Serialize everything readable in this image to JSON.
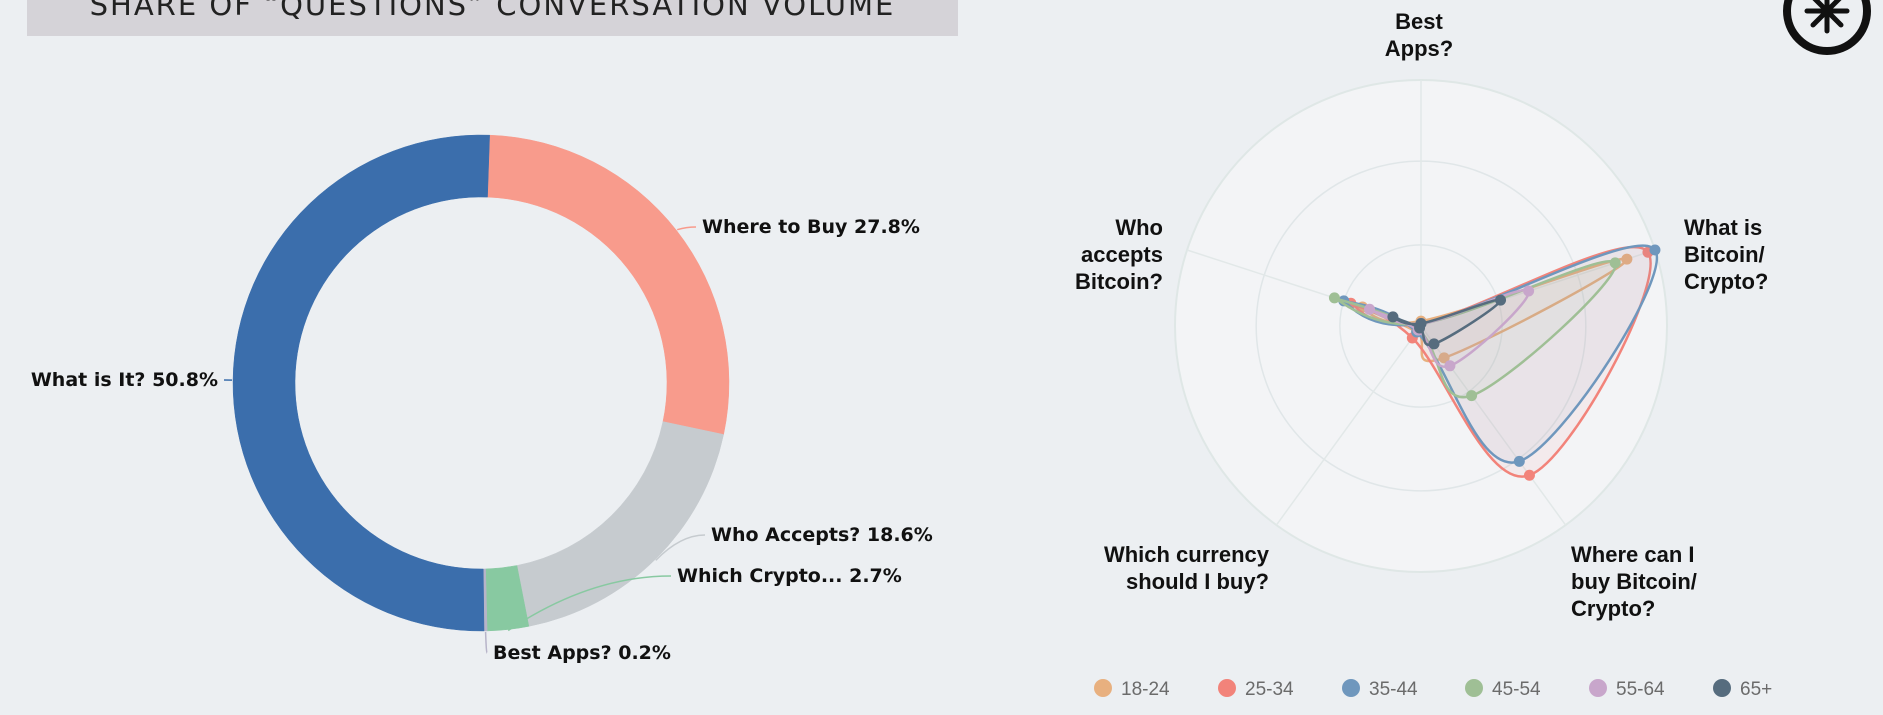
{
  "header": {
    "title": "SHARE OF “QUESTIONS” CONVERSATION VOLUME"
  },
  "logo": {
    "icon": "asterisk-circle-logo",
    "color": "#111111"
  },
  "chart_data": [
    {
      "type": "pie",
      "subtype": "donut",
      "slices": [
        {
          "label": "Where to Buy 27.8%",
          "name": "Where to Buy",
          "value": 27.8,
          "color": "#f89b8c"
        },
        {
          "label": "Who Accepts? 18.6%",
          "name": "Who Accepts?",
          "value": 18.6,
          "color": "#c6cbcf"
        },
        {
          "label": "Which Crypto... 2.7%",
          "name": "Which Crypto...",
          "value": 2.7,
          "color": "#88c9a1"
        },
        {
          "label": "Best Apps? 0.2%",
          "name": "Best Apps?",
          "value": 0.2,
          "color": "#b7b4c9"
        },
        {
          "label": "What is It? 50.8%",
          "name": "What is It?",
          "value": 50.8,
          "color": "#3b6eac"
        }
      ]
    },
    {
      "type": "radar",
      "axes": [
        "Best Apps?",
        "What is Bitcoin/ Crypto?",
        "Where can I buy Bitcoin/ Crypto?",
        "Which currency should I buy?",
        "Who accepts Bitcoin?"
      ],
      "axis_label_lines": [
        [
          "Best",
          "Apps?"
        ],
        [
          "What is",
          "Bitcoin/",
          "Crypto?"
        ],
        [
          "Where can I",
          "buy Bitcoin/",
          "Crypto?"
        ],
        [
          "Which currency",
          "should I buy?"
        ],
        [
          "Who",
          "accepts",
          "Bitcoin?"
        ]
      ],
      "range": [
        0,
        100
      ],
      "series": [
        {
          "name": "18-24",
          "color": "#e8b07f",
          "values": [
            2,
            88,
            16,
            3,
            25
          ]
        },
        {
          "name": "25-34",
          "color": "#f2837a",
          "values": [
            1,
            97,
            75,
            6,
            30
          ]
        },
        {
          "name": "35-44",
          "color": "#6f97bd",
          "values": [
            1,
            100,
            68,
            3,
            33
          ]
        },
        {
          "name": "45-54",
          "color": "#9fbf95",
          "values": [
            1,
            83,
            35,
            2,
            37
          ]
        },
        {
          "name": "55-64",
          "color": "#c8a6cb",
          "values": [
            1,
            46,
            20,
            2,
            22
          ]
        },
        {
          "name": "65+",
          "color": "#566c7e",
          "values": [
            1,
            34,
            9,
            1,
            12
          ]
        }
      ],
      "legend_position": "bottom",
      "grid": true
    }
  ]
}
